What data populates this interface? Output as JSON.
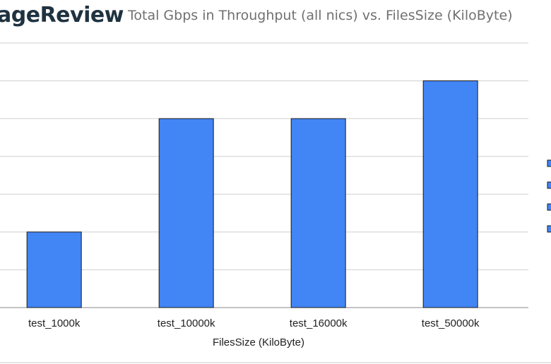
{
  "brand": "ageReview",
  "chart_data": {
    "type": "bar",
    "title": "Total Gbps in Throughput (all nics) vs. FilesSize (KiloByte)",
    "xlabel": "FilesSize (KiloByte)",
    "ylabel": "",
    "categories": [
      "test_1000k",
      "test_10000k",
      "test_16000k",
      "test_50000k"
    ],
    "values": [
      2,
      5,
      5,
      6
    ],
    "ylim": [
      0,
      7
    ],
    "grid": true,
    "legend_position": "right",
    "bar_color": "#4285f4",
    "legend_swatch_color": "#4285f4"
  }
}
